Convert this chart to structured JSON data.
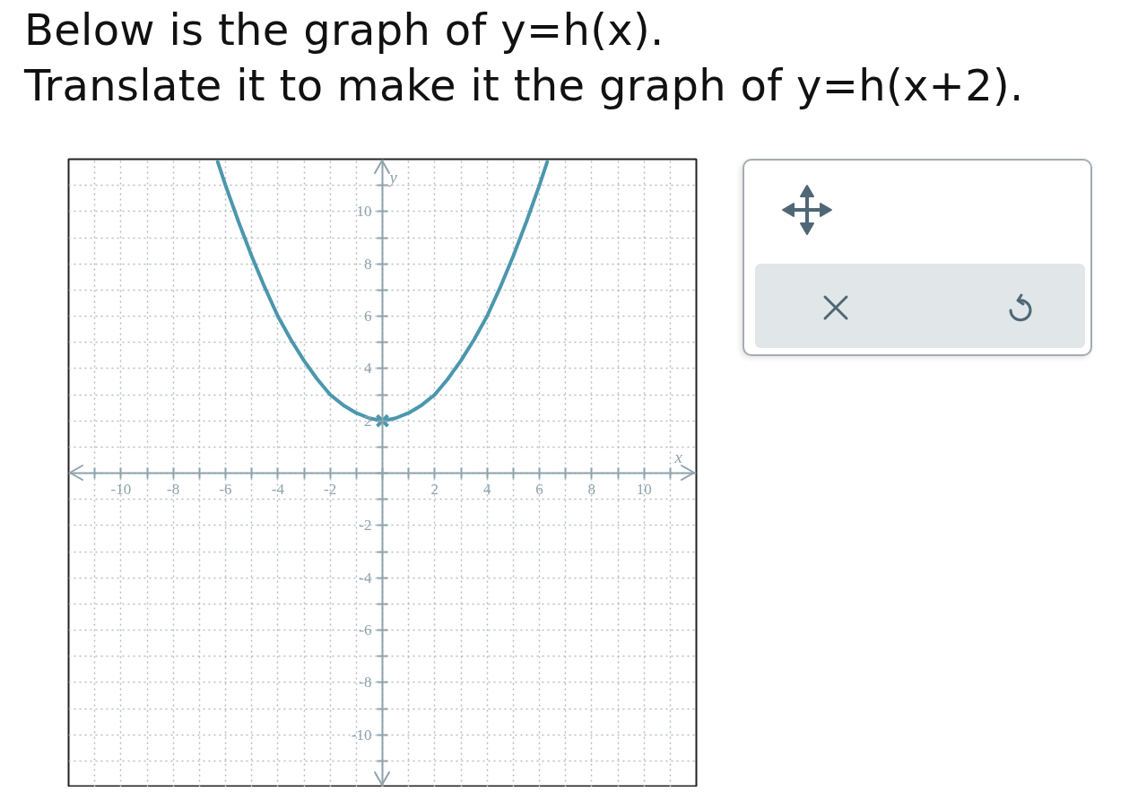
{
  "chart_data": {
    "type": "line",
    "title": "Below is the graph of y=h(x).",
    "subtitle": "Translate it to make it the graph of y=h(x+2).",
    "xlabel": "x",
    "ylabel": "y",
    "xlim": [
      -12,
      12
    ],
    "ylim": [
      -12,
      12
    ],
    "xticks": [
      {
        "value": -11,
        "label": null
      },
      -10,
      {
        "value": -9,
        "label": null
      },
      -8,
      {
        "value": -7,
        "label": null
      },
      -6,
      {
        "value": -5,
        "label": null
      },
      -4,
      {
        "value": -3,
        "label": null
      },
      -2,
      {
        "value": -1,
        "label": null
      },
      {
        "value": 0,
        "label": null
      },
      {
        "value": 1,
        "label": null
      },
      2,
      {
        "value": 3,
        "label": null
      },
      4,
      {
        "value": 5,
        "label": null
      },
      6,
      {
        "value": 7,
        "label": null
      },
      8,
      {
        "value": 9,
        "label": null
      },
      10,
      {
        "value": 11,
        "label": null
      }
    ],
    "yticks": [
      {
        "value": -11,
        "label": null
      },
      -10,
      {
        "value": -9,
        "label": null
      },
      -8,
      {
        "value": -7,
        "label": null
      },
      -6,
      {
        "value": -5,
        "label": null
      },
      -4,
      {
        "value": -3,
        "label": null
      },
      -2,
      {
        "value": -1,
        "label": null
      },
      {
        "value": 0,
        "label": null
      },
      {
        "value": 1,
        "label": null
      },
      2,
      {
        "value": 3,
        "label": null
      },
      4,
      {
        "value": 5,
        "label": null
      },
      6,
      {
        "value": 7,
        "label": null
      },
      8,
      {
        "value": 9,
        "label": null
      },
      10,
      {
        "value": 11,
        "label": null
      }
    ],
    "grid": true,
    "series": [
      {
        "color": "#4b97ae",
        "line_style": "solid",
        "x": [
          -6.3,
          -6,
          -5.5,
          -5,
          -4.5,
          -4,
          -3.5,
          -3,
          -2.5,
          -2,
          -1.5,
          -1,
          -0.5,
          0,
          0.5,
          1,
          1.5,
          2,
          2.5,
          3,
          3.5,
          4,
          4.5,
          5,
          5.5,
          6,
          6.3
        ],
        "values": [
          11.9,
          11,
          9.6,
          8.3,
          7.1,
          6,
          5.1,
          4.3,
          3.6,
          3,
          2.6,
          2.3,
          2.1,
          2,
          2.1,
          2.3,
          2.6,
          3,
          3.6,
          4.3,
          5.1,
          6,
          7.1,
          8.3,
          9.6,
          11,
          11.9
        ]
      },
      {
        "type": "scatter",
        "color": "#4b97ae",
        "marker": "cross",
        "x": [
          0
        ],
        "values": [
          2
        ]
      }
    ]
  }
}
